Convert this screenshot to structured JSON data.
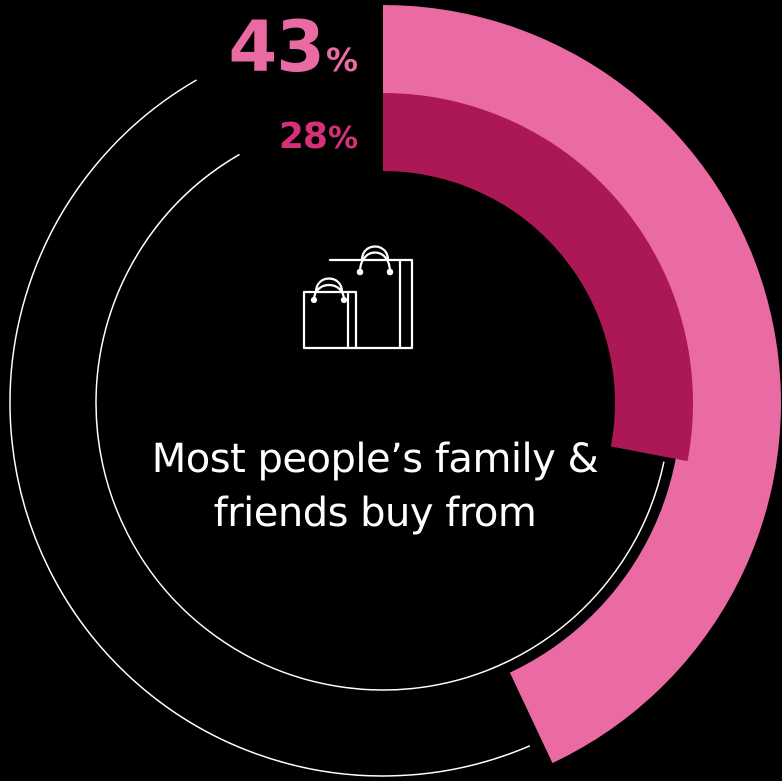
{
  "chart_data": {
    "type": "radial-bar",
    "caption": "Most people’s family & friends buy from",
    "series": [
      {
        "value": 43,
        "label": "43",
        "unit": "%",
        "color": "#ea6aa4"
      },
      {
        "value": 28,
        "label": "28",
        "unit": "%",
        "color": "#ac1856"
      }
    ],
    "max": 100,
    "track_color": "#ffffff",
    "label_colors": [
      "#ea6aa4",
      "#d6307a"
    ],
    "icon": "shopping-bags-icon"
  }
}
